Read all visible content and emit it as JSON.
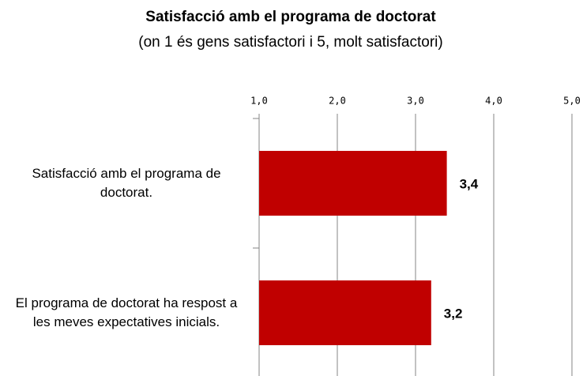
{
  "chart_data": {
    "type": "bar",
    "orientation": "horizontal",
    "title": "Satisfacció amb el programa de doctorat",
    "subtitle": "(on 1 és gens satisfactori i 5, molt satisfactori)",
    "categories": [
      "Satisfacció amb el programa de doctorat.",
      "El programa de doctorat ha respost a les meves expectatives inicials."
    ],
    "values": [
      3.4,
      3.2
    ],
    "value_labels": [
      "3,4",
      "3,2"
    ],
    "color": "#c00000",
    "xlim": [
      1,
      5
    ],
    "xticks": [
      {
        "value": 1,
        "label": "1,0"
      },
      {
        "value": 2,
        "label": "2,0"
      },
      {
        "value": 3,
        "label": "3,0"
      },
      {
        "value": 4,
        "label": "4,0"
      },
      {
        "value": 5,
        "label": "5,0"
      }
    ],
    "grid": true
  }
}
